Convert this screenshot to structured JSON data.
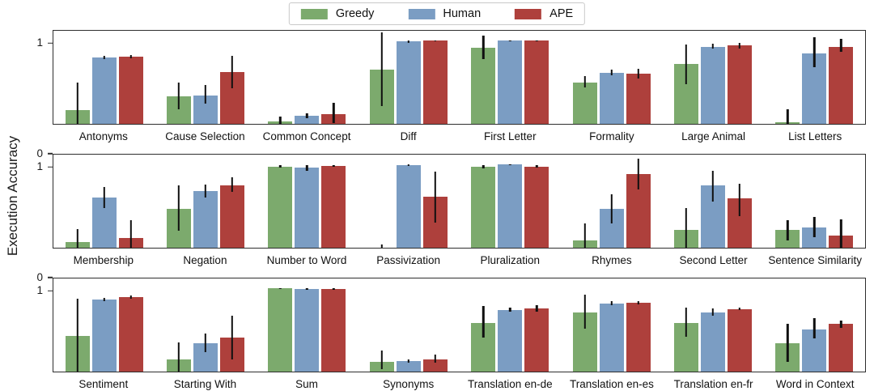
{
  "chart_data": {
    "type": "bar",
    "variant": "grouped-bar-with-error-bars",
    "title": "",
    "ylabel": "Execution Accuracy",
    "xlabel": "",
    "yticks": [
      0,
      1
    ],
    "ylim": [
      0,
      1.12
    ],
    "grid": false,
    "legend_position": "top-center",
    "error_bar_color": "#101010",
    "series": [
      {
        "name": "Greedy",
        "color": "#7caa6d"
      },
      {
        "name": "Human",
        "color": "#7b9dc3"
      },
      {
        "name": "APE",
        "color": "#ae403c"
      }
    ],
    "rows": [
      {
        "groups": [
          {
            "category": "Antonyms",
            "values": [
              0.17,
              0.8,
              0.81
            ],
            "errors": [
              [
                0.0,
                0.5
              ],
              [
                0.78,
                0.82
              ],
              [
                0.79,
                0.83
              ]
            ]
          },
          {
            "category": "Cause Selection",
            "values": [
              0.33,
              0.34,
              0.62
            ],
            "errors": [
              [
                0.18,
                0.5
              ],
              [
                0.24,
                0.47
              ],
              [
                0.43,
                0.82
              ]
            ]
          },
          {
            "category": "Common Concept",
            "values": [
              0.03,
              0.1,
              0.12
            ],
            "errors": [
              [
                0.0,
                0.09
              ],
              [
                0.07,
                0.13
              ],
              [
                0.01,
                0.25
              ]
            ]
          },
          {
            "category": "Diff",
            "values": [
              0.65,
              0.99,
              1.0
            ],
            "errors": [
              [
                0.21,
                1.1
              ],
              [
                0.97,
                1.0
              ],
              [
                0.99,
                1.0
              ]
            ]
          },
          {
            "category": "First Letter",
            "values": [
              0.92,
              1.0,
              1.0
            ],
            "errors": [
              [
                0.78,
                1.06
              ],
              [
                0.99,
                1.0
              ],
              [
                0.99,
                1.0
              ]
            ]
          },
          {
            "category": "Formality",
            "values": [
              0.5,
              0.61,
              0.6
            ],
            "errors": [
              [
                0.44,
                0.57
              ],
              [
                0.58,
                0.65
              ],
              [
                0.55,
                0.66
              ]
            ]
          },
          {
            "category": "Large Animal",
            "values": [
              0.72,
              0.93,
              0.94
            ],
            "errors": [
              [
                0.48,
                0.95
              ],
              [
                0.91,
                0.96
              ],
              [
                0.91,
                0.97
              ]
            ]
          },
          {
            "category": "List Letters",
            "values": [
              0.02,
              0.85,
              0.93
            ],
            "errors": [
              [
                0.0,
                0.18
              ],
              [
                0.68,
                1.04
              ],
              [
                0.87,
                1.02
              ]
            ]
          }
        ]
      },
      {
        "groups": [
          {
            "category": "Membership",
            "values": [
              0.07,
              0.6,
              0.12
            ],
            "errors": [
              [
                0.0,
                0.22
              ],
              [
                0.48,
                0.73
              ],
              [
                0.0,
                0.33
              ]
            ]
          },
          {
            "category": "Negation",
            "values": [
              0.47,
              0.68,
              0.75
            ],
            "errors": [
              [
                0.2,
                0.75
              ],
              [
                0.6,
                0.76
              ],
              [
                0.67,
                0.85
              ]
            ]
          },
          {
            "category": "Number to Word",
            "values": [
              0.97,
              0.96,
              0.98
            ],
            "errors": [
              [
                0.96,
                0.99
              ],
              [
                0.93,
                0.99
              ],
              [
                0.97,
                0.99
              ]
            ]
          },
          {
            "category": "Passivization",
            "values": [
              0.0,
              0.99,
              0.61
            ],
            "errors": [
              [
                0.0,
                0.04
              ],
              [
                0.98,
                1.0
              ],
              [
                0.3,
                0.92
              ]
            ]
          },
          {
            "category": "Pluralization",
            "values": [
              0.97,
              1.0,
              0.97
            ],
            "errors": [
              [
                0.95,
                0.99
              ],
              [
                0.99,
                1.0
              ],
              [
                0.96,
                0.99
              ]
            ]
          },
          {
            "category": "Rhymes",
            "values": [
              0.09,
              0.47,
              0.89
            ],
            "errors": [
              [
                0.0,
                0.29
              ],
              [
                0.29,
                0.64
              ],
              [
                0.7,
                1.07
              ]
            ]
          },
          {
            "category": "Second Letter",
            "values": [
              0.21,
              0.75,
              0.59
            ],
            "errors": [
              [
                0.0,
                0.48
              ],
              [
                0.56,
                0.93
              ],
              [
                0.38,
                0.77
              ]
            ]
          },
          {
            "category": "Sentence Similarity",
            "values": [
              0.21,
              0.24,
              0.15
            ],
            "errors": [
              [
                0.09,
                0.33
              ],
              [
                0.13,
                0.37
              ],
              [
                0.0,
                0.34
              ]
            ]
          }
        ]
      },
      {
        "groups": [
          {
            "category": "Sentiment",
            "values": [
              0.43,
              0.87,
              0.9
            ],
            "errors": [
              [
                0.0,
                0.88
              ],
              [
                0.85,
                0.89
              ],
              [
                0.88,
                0.92
              ]
            ]
          },
          {
            "category": "Starting With",
            "values": [
              0.15,
              0.34,
              0.41
            ],
            "errors": [
              [
                0.0,
                0.35
              ],
              [
                0.23,
                0.46
              ],
              [
                0.15,
                0.67
              ]
            ]
          },
          {
            "category": "Sum",
            "values": [
              1.0,
              0.99,
              0.99
            ],
            "errors": [
              [
                0.99,
                1.0
              ],
              [
                0.98,
                1.0
              ],
              [
                0.98,
                1.0
              ]
            ]
          },
          {
            "category": "Synonyms",
            "values": [
              0.12,
              0.13,
              0.15
            ],
            "errors": [
              [
                0.03,
                0.25
              ],
              [
                0.11,
                0.15
              ],
              [
                0.11,
                0.2
              ]
            ]
          },
          {
            "category": "Translation en-de",
            "values": [
              0.58,
              0.74,
              0.76
            ],
            "errors": [
              [
                0.41,
                0.79
              ],
              [
                0.72,
                0.77
              ],
              [
                0.72,
                0.8
              ]
            ]
          },
          {
            "category": "Translation en-es",
            "values": [
              0.71,
              0.82,
              0.83
            ],
            "errors": [
              [
                0.52,
                0.93
              ],
              [
                0.8,
                0.85
              ],
              [
                0.81,
                0.85
              ]
            ]
          },
          {
            "category": "Translation en-fr",
            "values": [
              0.58,
              0.71,
              0.75
            ],
            "errors": [
              [
                0.42,
                0.77
              ],
              [
                0.67,
                0.76
              ],
              [
                0.74,
                0.77
              ]
            ]
          },
          {
            "category": "Word in Context",
            "values": [
              0.34,
              0.51,
              0.57
            ],
            "errors": [
              [
                0.12,
                0.57
              ],
              [
                0.4,
                0.64
              ],
              [
                0.53,
                0.61
              ]
            ]
          }
        ]
      }
    ]
  }
}
